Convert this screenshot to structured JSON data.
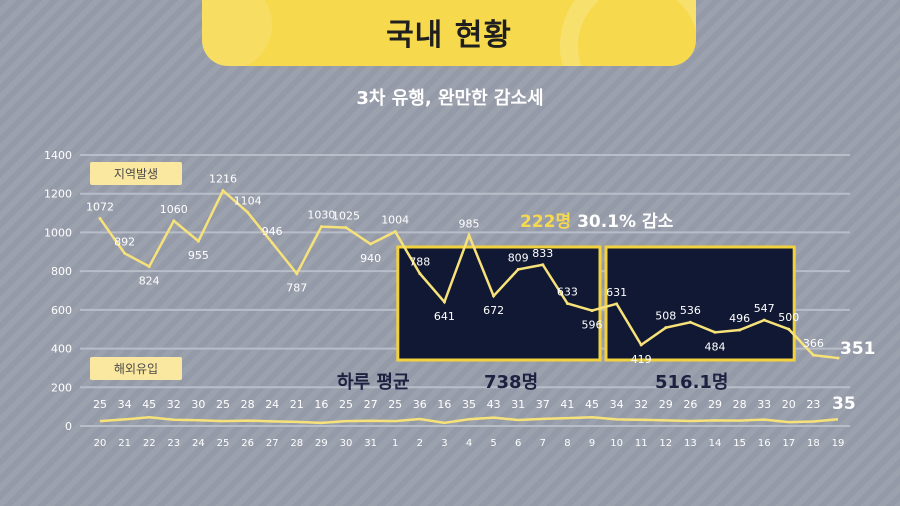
{
  "header": {
    "title": "국내 현황",
    "subtitle": "3차 유행, 완만한 감소세"
  },
  "badges": {
    "domestic": "지역발생",
    "imported": "해외유입"
  },
  "highlight": {
    "count": "222명",
    "rest": "30.1% 감소"
  },
  "averages": {
    "label": "하루 평균",
    "period1": "738명",
    "period2": "516.1명"
  },
  "colors": {
    "banner": "#f7d94e",
    "line": "#f7e27a",
    "box": "#111833",
    "box_border": "#f2d23c",
    "grid": "#b9bdc8"
  },
  "chart_data": {
    "type": "line",
    "x": [
      "20",
      "21",
      "22",
      "23",
      "24",
      "25",
      "26",
      "27",
      "28",
      "29",
      "30",
      "31",
      "1",
      "2",
      "3",
      "4",
      "5",
      "6",
      "7",
      "8",
      "9",
      "10",
      "11",
      "12",
      "13",
      "14",
      "15",
      "16",
      "17",
      "18",
      "19"
    ],
    "yticks": [
      0,
      200,
      400,
      600,
      800,
      1000,
      1200,
      1400
    ],
    "ylim": [
      0,
      1400
    ],
    "grid": true,
    "series": [
      {
        "name": "지역발생",
        "values": [
          1072,
          892,
          824,
          1060,
          955,
          1216,
          1104,
          946,
          787,
          1030,
          1025,
          940,
          1004,
          788,
          641,
          985,
          672,
          809,
          833,
          633,
          596,
          631,
          419,
          508,
          536,
          484,
          496,
          547,
          500,
          366,
          351
        ]
      },
      {
        "name": "해외유입",
        "values": [
          25,
          34,
          45,
          32,
          30,
          25,
          28,
          24,
          21,
          16,
          25,
          27,
          25,
          36,
          16,
          35,
          43,
          31,
          37,
          41,
          45,
          34,
          32,
          29,
          26,
          29,
          28,
          33,
          20,
          23,
          35
        ]
      }
    ]
  }
}
